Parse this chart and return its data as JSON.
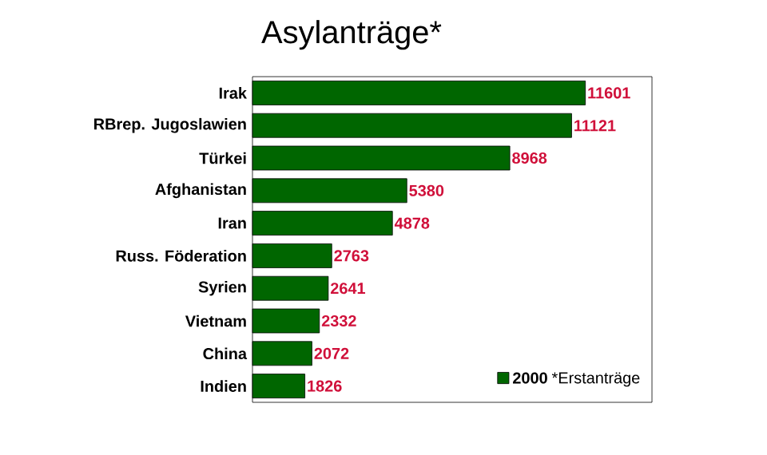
{
  "chart_data": {
    "type": "bar",
    "orientation": "horizontal",
    "title": "Asylanträge*",
    "categories": [
      "Irak",
      "RBrep. Jugoslawien",
      "Türkei",
      "Afghanistan",
      "Iran",
      "Russ. Föderation",
      "Syrien",
      "Vietnam",
      "China",
      "Indien"
    ],
    "series": [
      {
        "name": "2000",
        "color": "#006600",
        "values": [
          11601,
          11121,
          8968,
          5380,
          4878,
          2763,
          2641,
          2332,
          2072,
          1826
        ]
      }
    ],
    "data_labels": true,
    "tick_labels": "y",
    "legend": "bottom right",
    "annotations": [
      "*Erstanträge"
    ]
  }
}
